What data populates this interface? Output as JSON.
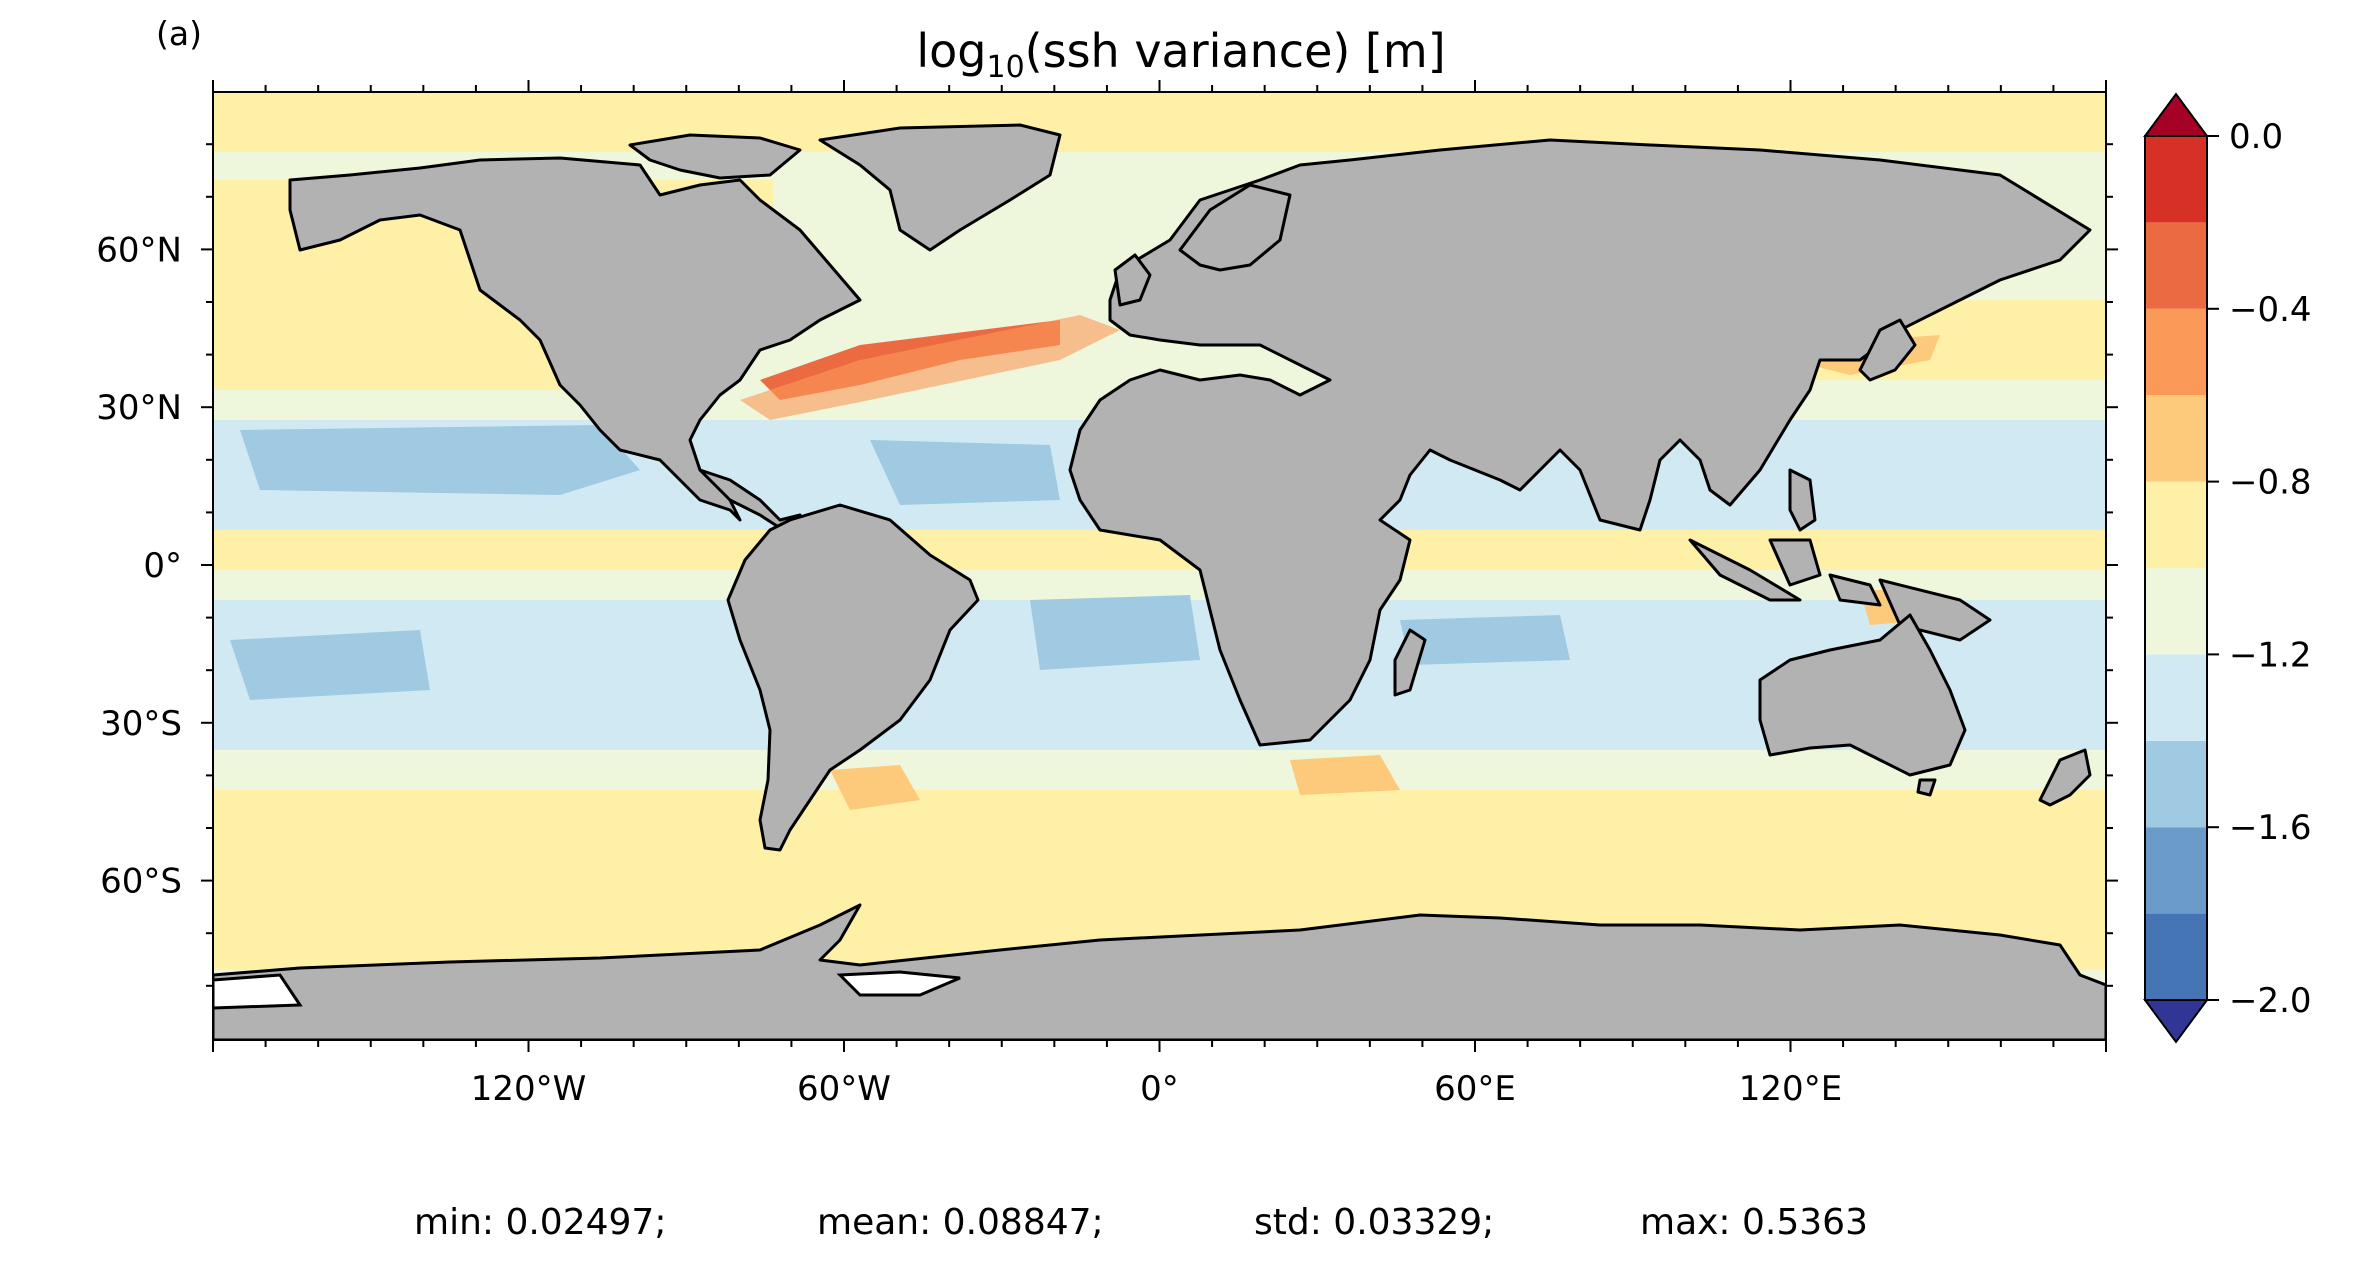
{
  "panel_label": "(a)",
  "title": {
    "prefix": "log",
    "subscript": "10",
    "suffix": "(ssh variance) [m]"
  },
  "lon_ticks": [
    {
      "value": -120,
      "label": "120°W"
    },
    {
      "value": -60,
      "label": "60°W"
    },
    {
      "value": 0,
      "label": "0°"
    },
    {
      "value": 60,
      "label": "60°E"
    },
    {
      "value": 120,
      "label": "120°E"
    }
  ],
  "lat_ticks": [
    {
      "value": 60,
      "label": "60°N"
    },
    {
      "value": 30,
      "label": "30°N"
    },
    {
      "value": 0,
      "label": "0°"
    },
    {
      "value": -30,
      "label": "30°S"
    },
    {
      "value": -60,
      "label": "60°S"
    }
  ],
  "colorbar": {
    "levels": [
      -2.0,
      -1.8,
      -1.6,
      -1.4,
      -1.2,
      -1.0,
      -0.8,
      -0.6,
      -0.4,
      -0.2,
      0.0
    ],
    "colors": [
      "#4575b4",
      "#6b9bc9",
      "#9fcae1",
      "#d1e9f3",
      "#eef6dc",
      "#fff0a8",
      "#fdc97a",
      "#fb9a58",
      "#ec6a41",
      "#d73027"
    ],
    "under_color": "#313695",
    "over_color": "#a50026",
    "tick_labels": [
      {
        "value": 0.0,
        "label": "0.0"
      },
      {
        "value": -0.4,
        "label": "−0.4"
      },
      {
        "value": -0.8,
        "label": "−0.8"
      },
      {
        "value": -1.2,
        "label": "−1.2"
      },
      {
        "value": -1.6,
        "label": "−1.6"
      },
      {
        "value": -2.0,
        "label": "−2.0"
      }
    ]
  },
  "colors": {
    "land": "#b2b2b2",
    "coast": "#000000",
    "ice": "#ffffff",
    "ocean_background": "#eef6dc"
  },
  "stats": {
    "min": "min: 0.02497;",
    "mean": "mean: 0.08847;",
    "std": "std: 0.03329;",
    "max": "max: 0.5363"
  }
}
